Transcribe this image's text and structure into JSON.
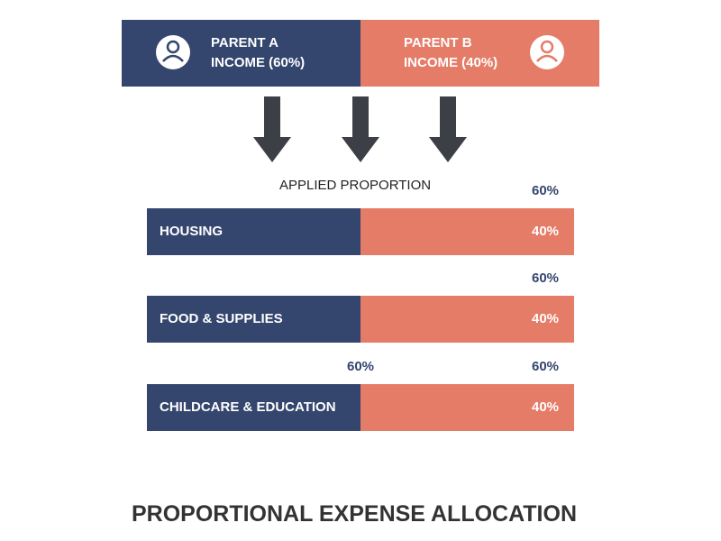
{
  "header": {
    "parent_a": [
      "PARENT A",
      "INCOME (60%)"
    ],
    "parent_b": [
      "PARENT B",
      "INCOME (40%)"
    ]
  },
  "applied_label": "APPLIED PROPORTION",
  "rows": [
    {
      "name": "HOUSING",
      "inside": "40%",
      "above": [
        "60%"
      ]
    },
    {
      "name": "FOOD & SUPPLIES",
      "inside": "40%",
      "above": [
        "60%"
      ]
    },
    {
      "name": "CHILDCARE & EDUCATION",
      "inside": "40%",
      "above": [
        "60%",
        "60%"
      ]
    }
  ],
  "title": "PROPORTIONAL EXPENSE ALLOCATION"
}
